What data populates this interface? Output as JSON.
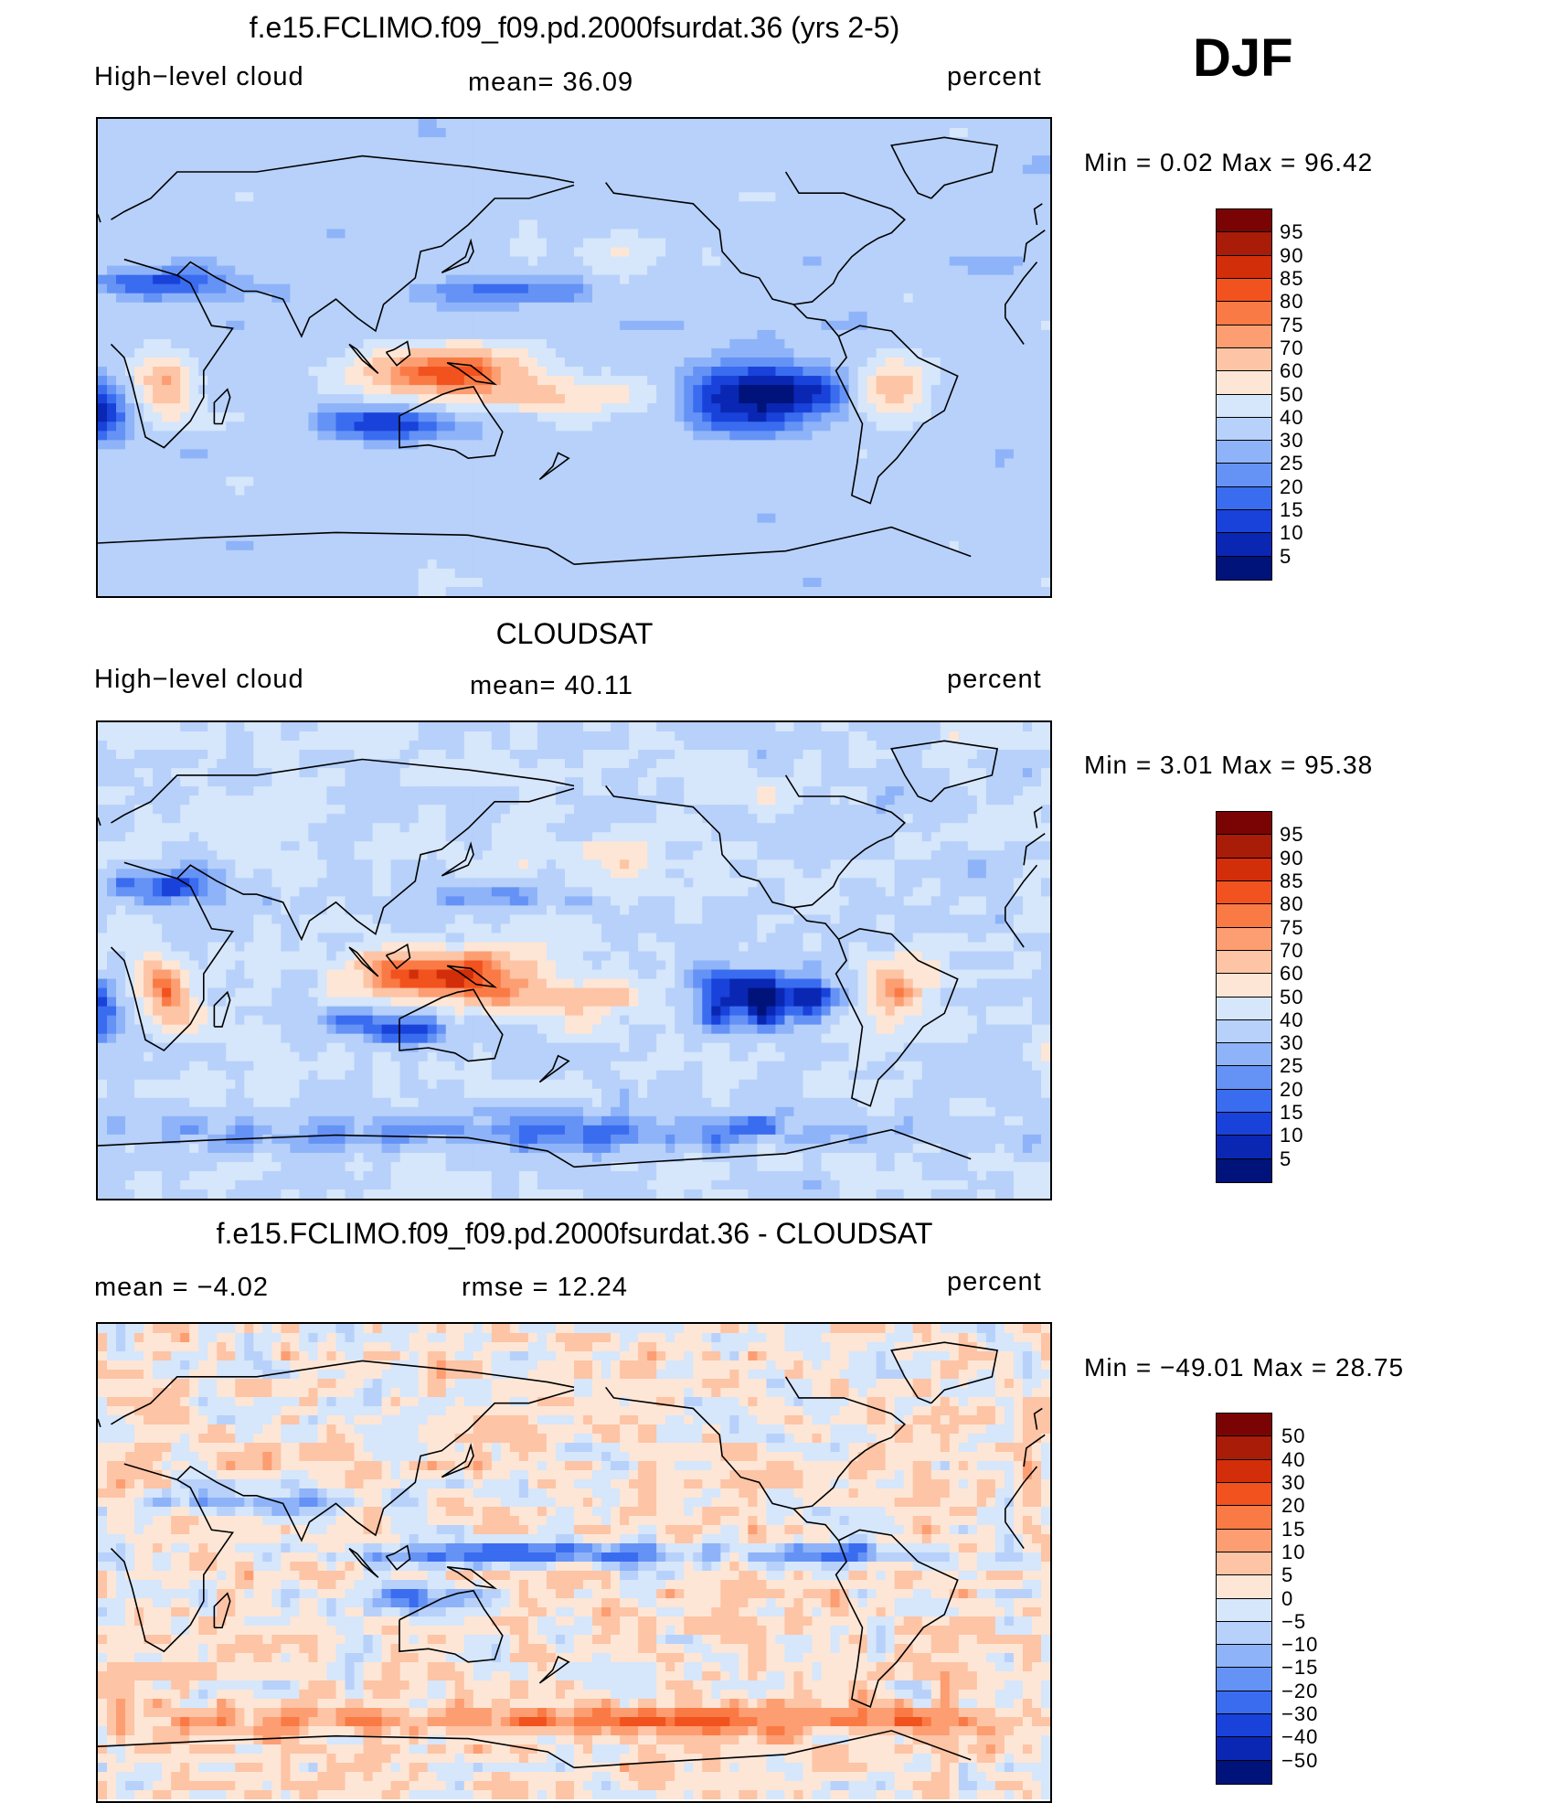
{
  "season": "DJF",
  "chart_data": [
    {
      "type": "heatmap",
      "title": "f.e15.FCLIMO.f09_f09.pd.2000fsurdat.36 (yrs 2-5)",
      "variable": "High−level cloud",
      "stat_text": "mean=   36.09",
      "units": "percent",
      "min_max_text": "Min =    0.02  Max =    96.42",
      "min": 0.02,
      "max": 96.42,
      "mean": 36.09,
      "colorbar": {
        "levels": [
          "95",
          "90",
          "85",
          "80",
          "75",
          "70",
          "60",
          "50",
          "40",
          "30",
          "25",
          "20",
          "15",
          "10",
          "5"
        ],
        "colors": [
          "#7a0403",
          "#a81c08",
          "#d22e0a",
          "#f2521e",
          "#fa7a45",
          "#fc9e72",
          "#fdc4a5",
          "#fde6d6",
          "#d6e6fb",
          "#b7d1fa",
          "#8eb3f8",
          "#6592f5",
          "#3a6cf0",
          "#1842d9",
          "#0a27b4",
          "#00137a"
        ]
      },
      "grid": {
        "lon_cells": 72,
        "lat_cells": 36,
        "lon_range": [
          0,
          360
        ],
        "lat_range": [
          -90,
          90
        ]
      }
    },
    {
      "type": "heatmap",
      "title": "CLOUDSAT",
      "variable": "High−level cloud",
      "stat_text": "mean=   40.11",
      "units": "percent",
      "min_max_text": "Min =    3.01  Max =    95.38",
      "min": 3.01,
      "max": 95.38,
      "mean": 40.11,
      "colorbar": {
        "levels": [
          "95",
          "90",
          "85",
          "80",
          "75",
          "70",
          "60",
          "50",
          "40",
          "30",
          "25",
          "20",
          "15",
          "10",
          "5"
        ],
        "colors": [
          "#7a0403",
          "#a81c08",
          "#d22e0a",
          "#f2521e",
          "#fa7a45",
          "#fc9e72",
          "#fdc4a5",
          "#fde6d6",
          "#d6e6fb",
          "#b7d1fa",
          "#8eb3f8",
          "#6592f5",
          "#3a6cf0",
          "#1842d9",
          "#0a27b4",
          "#00137a"
        ]
      },
      "grid": {
        "lon_cells": 72,
        "lat_cells": 36,
        "lon_range": [
          0,
          360
        ],
        "lat_range": [
          -90,
          90
        ]
      }
    },
    {
      "type": "heatmap",
      "title": "f.e15.FCLIMO.f09_f09.pd.2000fsurdat.36 - CLOUDSAT",
      "stat_text_left": "mean =    −4.02",
      "stat_text_mid": "rmse =    12.24",
      "units": "percent",
      "min_max_text": "Min = −49.01  Max =    28.75",
      "min": -49.01,
      "max": 28.75,
      "mean": -4.02,
      "rmse": 12.24,
      "colorbar": {
        "levels": [
          "50",
          "40",
          "30",
          "20",
          "15",
          "10",
          "5",
          "0",
          "−5",
          "−10",
          "−15",
          "−20",
          "−30",
          "−40",
          "−50"
        ],
        "colors": [
          "#7a0403",
          "#a81c08",
          "#d22e0a",
          "#f2521e",
          "#fa7a45",
          "#fc9e72",
          "#fdc4a5",
          "#fde6d6",
          "#d6e6fb",
          "#b7d1fa",
          "#8eb3f8",
          "#6592f5",
          "#3a6cf0",
          "#1842d9",
          "#0a27b4",
          "#00137a"
        ]
      },
      "grid": {
        "lon_cells": 72,
        "lat_cells": 36,
        "lon_range": [
          0,
          360
        ],
        "lat_range": [
          -90,
          90
        ]
      }
    }
  ]
}
